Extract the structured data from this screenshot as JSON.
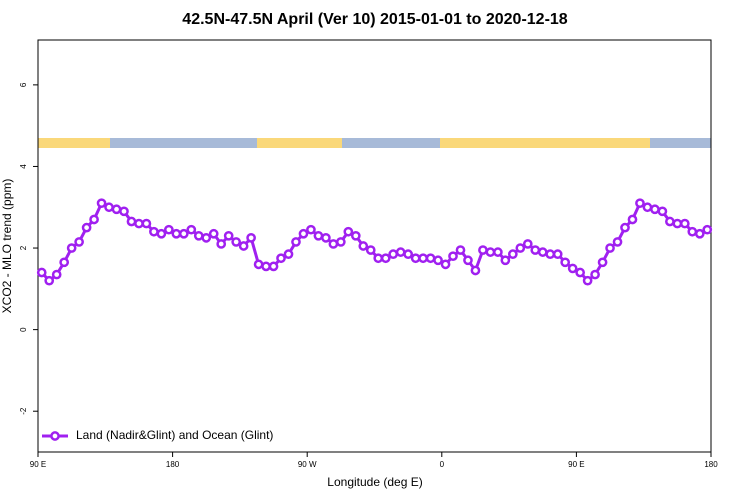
{
  "chart_data": {
    "type": "line",
    "title": "42.5N-47.5N April (Ver 10)   2015-01-01 to 2020-12-18",
    "xlabel": "Longitude (deg E)",
    "ylabel": "XCO2 - MLO trend (ppm)",
    "x": [
      92.5,
      97.5,
      102.5,
      107.5,
      112.5,
      117.5,
      122.5,
      127.5,
      132.5,
      137.5,
      142.5,
      147.5,
      152.5,
      157.5,
      162.5,
      167.5,
      172.5,
      177.5,
      182.5,
      187.5,
      192.5,
      197.5,
      202.5,
      207.5,
      212.5,
      217.5,
      222.5,
      227.5,
      232.5,
      237.5,
      242.5,
      247.5,
      252.5,
      257.5,
      262.5,
      267.5,
      272.5,
      277.5,
      282.5,
      287.5,
      292.5,
      297.5,
      302.5,
      307.5,
      312.5,
      317.5,
      322.5,
      327.5,
      332.5,
      337.5,
      342.5,
      347.5,
      352.5,
      357.5,
      362.5,
      367.5,
      372.5,
      377.5,
      382.5,
      387.5,
      392.5,
      397.5,
      402.5,
      407.5,
      412.5,
      417.5,
      422.5,
      427.5,
      432.5,
      437.5,
      442.5,
      447.5,
      452.5,
      457.5,
      462.5,
      467.5,
      472.5,
      477.5,
      482.5,
      487.5,
      492.5,
      497.5,
      502.5,
      507.5,
      512.5,
      517.5,
      522.5,
      527.5,
      532.5,
      537.5
    ],
    "series": [
      {
        "name": "Land (Nadir&Glint) and Ocean (Glint)",
        "color": "#a020f0",
        "values": [
          1.4,
          1.2,
          1.35,
          1.65,
          2.0,
          2.15,
          2.5,
          2.7,
          3.1,
          3.0,
          2.95,
          2.9,
          2.65,
          2.6,
          2.6,
          2.4,
          2.35,
          2.45,
          2.35,
          2.35,
          2.45,
          2.3,
          2.25,
          2.35,
          2.1,
          2.3,
          2.15,
          2.05,
          2.25,
          1.6,
          1.55,
          1.55,
          1.75,
          1.85,
          2.15,
          2.35,
          2.45,
          2.3,
          2.25,
          2.1,
          2.15,
          2.4,
          2.3,
          2.05,
          1.95,
          1.75,
          1.75,
          1.85,
          1.9,
          1.85,
          1.75,
          1.75,
          1.75,
          1.7,
          1.6,
          1.8,
          1.95,
          1.7,
          1.45,
          1.95,
          1.9,
          1.9,
          1.7,
          1.85,
          2.0,
          2.1,
          1.95,
          1.9,
          1.85,
          1.85,
          1.65,
          1.5,
          1.4,
          1.2,
          1.35,
          1.65,
          2.0,
          2.15,
          2.5,
          2.7,
          3.1,
          3.0,
          2.95,
          2.9,
          2.65,
          2.6,
          2.6,
          2.4,
          2.35,
          2.45
        ]
      }
    ],
    "xlim": [
      90,
      540
    ],
    "ylim": [
      -3,
      7.1
    ],
    "xticks": [
      {
        "value": 90,
        "label": "90 E"
      },
      180,
      {
        "value": 270,
        "label": "90 W"
      },
      {
        "value": 360,
        "label": "0"
      },
      {
        "value": 450,
        "label": "90 E"
      },
      {
        "value": 540,
        "label": "180"
      }
    ],
    "yticks": [
      -2,
      0,
      2,
      4,
      6
    ],
    "legend": "bottom-left"
  }
}
